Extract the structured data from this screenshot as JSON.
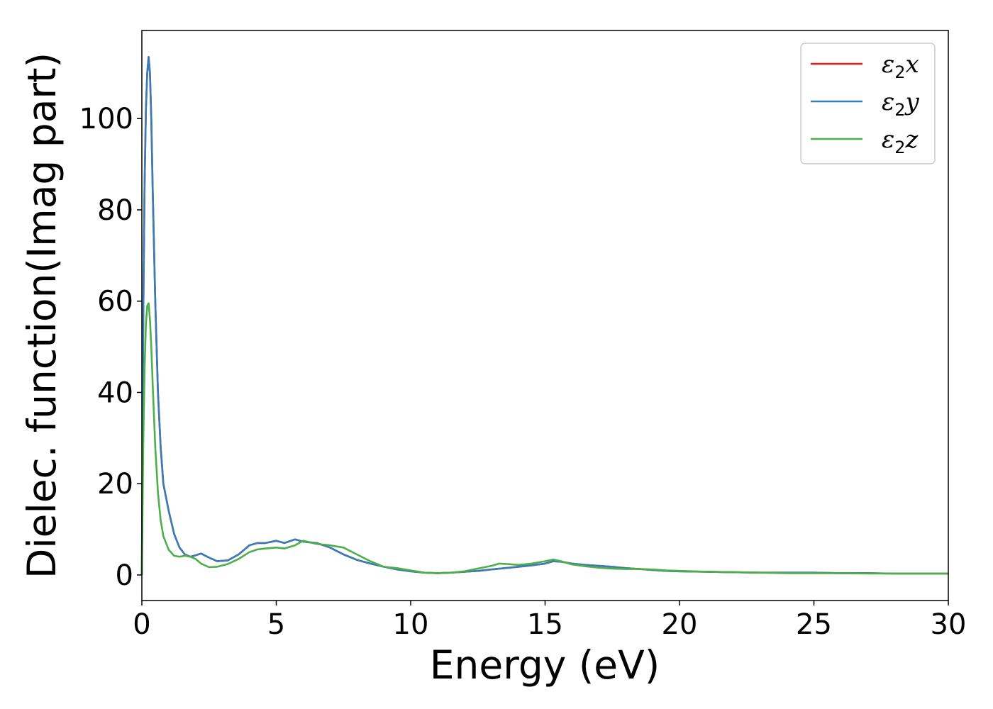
{
  "chart_data": {
    "type": "line",
    "xlabel": "Energy (eV)",
    "ylabel": "Dielec. function(Imag part)",
    "xlim": [
      0,
      30
    ],
    "ylim": [
      -5.6,
      119.3
    ],
    "xticks": [
      0,
      5,
      10,
      15,
      20,
      25,
      30
    ],
    "yticks": [
      0,
      20,
      40,
      60,
      80,
      100
    ],
    "grid": false,
    "legend_position": "top-right",
    "series": [
      {
        "name": "ε₂x",
        "label_sym": "ε",
        "label_sub": "2",
        "label_var": "x",
        "color": "#e41a1c",
        "x": [
          0,
          0.05,
          0.1,
          0.15,
          0.2,
          0.25,
          0.3,
          0.35,
          0.4,
          0.5,
          0.6,
          0.7,
          0.8,
          1.0,
          1.2,
          1.4,
          1.6,
          1.8,
          2.0,
          2.2,
          2.5,
          2.8,
          3.2,
          3.6,
          4.0,
          4.3,
          4.6,
          5.0,
          5.3,
          5.7,
          6.0,
          6.5,
          7.0,
          7.5,
          8.0,
          8.5,
          9.0,
          9.5,
          10.0,
          10.5,
          11.0,
          11.5,
          12.0,
          12.5,
          13.0,
          13.5,
          14.0,
          14.5,
          15.0,
          15.3,
          15.6,
          16.0,
          16.5,
          17.0,
          17.5,
          18.0,
          18.5,
          19.0,
          19.5,
          20.0,
          21,
          22,
          23,
          24,
          25,
          26,
          27,
          28,
          29,
          30
        ],
        "y": [
          0,
          55,
          85,
          102,
          110,
          113.5,
          110,
          100,
          85,
          60,
          40,
          28,
          20,
          14,
          9,
          6,
          4.5,
          4,
          4.3,
          4.7,
          3.8,
          3,
          3.2,
          4.5,
          6.5,
          7,
          7,
          7.5,
          7,
          7.8,
          7.3,
          7,
          6,
          4.5,
          3.3,
          2.5,
          1.8,
          1.2,
          0.8,
          0.5,
          0.4,
          0.5,
          0.7,
          0.9,
          1.2,
          1.5,
          1.8,
          2.1,
          2.5,
          3,
          2.9,
          2.5,
          2.2,
          2,
          1.8,
          1.5,
          1.3,
          1.1,
          0.9,
          0.8,
          0.7,
          0.6,
          0.5,
          0.5,
          0.5,
          0.4,
          0.4,
          0.3,
          0.3,
          0.3
        ]
      },
      {
        "name": "ε₂y",
        "label_sym": "ε",
        "label_sub": "2",
        "label_var": "y",
        "color": "#377eb8",
        "x": [
          0,
          0.05,
          0.1,
          0.15,
          0.2,
          0.25,
          0.3,
          0.35,
          0.4,
          0.5,
          0.6,
          0.7,
          0.8,
          1.0,
          1.2,
          1.4,
          1.6,
          1.8,
          2.0,
          2.2,
          2.5,
          2.8,
          3.2,
          3.6,
          4.0,
          4.3,
          4.6,
          5.0,
          5.3,
          5.7,
          6.0,
          6.5,
          7.0,
          7.5,
          8.0,
          8.5,
          9.0,
          9.5,
          10.0,
          10.5,
          11.0,
          11.5,
          12.0,
          12.5,
          13.0,
          13.5,
          14.0,
          14.5,
          15.0,
          15.3,
          15.6,
          16.0,
          16.5,
          17.0,
          17.5,
          18.0,
          18.5,
          19.0,
          19.5,
          20.0,
          21,
          22,
          23,
          24,
          25,
          26,
          27,
          28,
          29,
          30
        ],
        "y": [
          0,
          55,
          85,
          102,
          110,
          113.5,
          110,
          100,
          85,
          60,
          40,
          28,
          20,
          14,
          9,
          6,
          4.5,
          4,
          4.3,
          4.7,
          3.8,
          3,
          3.2,
          4.5,
          6.5,
          7,
          7,
          7.5,
          7,
          7.8,
          7.3,
          7,
          6,
          4.5,
          3.3,
          2.5,
          1.8,
          1.2,
          0.8,
          0.5,
          0.4,
          0.5,
          0.7,
          0.9,
          1.2,
          1.5,
          1.8,
          2.1,
          2.5,
          3,
          2.9,
          2.5,
          2.2,
          2,
          1.8,
          1.5,
          1.3,
          1.1,
          0.9,
          0.8,
          0.7,
          0.6,
          0.5,
          0.5,
          0.5,
          0.4,
          0.4,
          0.3,
          0.3,
          0.3
        ]
      },
      {
        "name": "ε₂z",
        "label_sym": "ε",
        "label_sub": "2",
        "label_var": "z",
        "color": "#4daf4a",
        "x": [
          0,
          0.05,
          0.1,
          0.15,
          0.2,
          0.25,
          0.3,
          0.35,
          0.4,
          0.5,
          0.6,
          0.7,
          0.8,
          1.0,
          1.2,
          1.4,
          1.6,
          1.8,
          2.0,
          2.2,
          2.5,
          2.8,
          3.2,
          3.6,
          4.0,
          4.3,
          4.6,
          5.0,
          5.3,
          5.7,
          6.0,
          6.5,
          7.0,
          7.5,
          8.0,
          8.5,
          9.0,
          9.5,
          10.0,
          10.5,
          11.0,
          11.5,
          12.0,
          12.5,
          13.0,
          13.3,
          13.6,
          14.0,
          14.5,
          15.0,
          15.3,
          15.6,
          16.0,
          16.5,
          17.0,
          17.5,
          18.0,
          18.5,
          19.0,
          19.5,
          20.0,
          21,
          22,
          23,
          24,
          25,
          26,
          27,
          28,
          29,
          30
        ],
        "y": [
          0,
          28,
          45,
          55,
          59,
          59.5,
          56,
          50,
          42,
          28,
          18,
          12,
          8.5,
          5.5,
          4.2,
          4,
          4.2,
          4,
          3.5,
          2.5,
          1.7,
          1.8,
          2.4,
          3.5,
          5,
          5.6,
          5.8,
          6,
          5.8,
          6.5,
          7.5,
          6.8,
          6.5,
          6,
          4.5,
          3,
          1.8,
          1.5,
          1,
          0.5,
          0.4,
          0.5,
          0.8,
          1.4,
          2,
          2.5,
          2.4,
          2.2,
          2.5,
          3,
          3.4,
          3,
          2.3,
          1.9,
          1.6,
          1.4,
          1.3,
          1.3,
          1.2,
          1,
          0.9,
          0.7,
          0.6,
          0.5,
          0.4,
          0.4,
          0.4,
          0.3,
          0.3,
          0.3,
          0.3
        ]
      }
    ]
  }
}
